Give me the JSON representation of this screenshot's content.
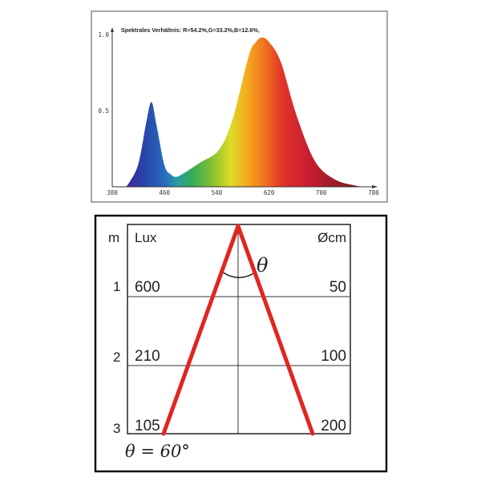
{
  "chart_data": {
    "type": "area",
    "title": "Spektrales Verhältnis:  R=54.2%,G=33.2%,B=12.6%,",
    "xlabel": "",
    "ylabel": "",
    "xlim": [
      380,
      780
    ],
    "ylim": [
      0,
      1.0
    ],
    "x_ticks": [
      "380",
      "460",
      "540",
      "620",
      "700",
      "780"
    ],
    "y_ticks": [
      "0.5",
      "1.0"
    ],
    "grid": false,
    "fill": "wavelength-spectrum-colors",
    "series": [
      {
        "x": [
          400,
          405,
          420,
          432,
          440,
          448,
          460,
          470,
          478,
          490,
          515,
          543,
          564,
          589,
          600,
          609,
          620,
          638,
          662,
          690,
          720,
          752,
          770
        ],
        "values": [
          0,
          0.02,
          0.15,
          0.42,
          0.556,
          0.4,
          0.14,
          0.08,
          0.065,
          0.09,
          0.16,
          0.24,
          0.44,
          0.86,
          0.95,
          0.98,
          0.95,
          0.82,
          0.47,
          0.17,
          0.05,
          0.008,
          0
        ]
      }
    ]
  },
  "diagram": {
    "beam_angle_symbol": "θ",
    "beam_angle_label": "θ = 60°",
    "beam_color": "#e0261f",
    "headers": {
      "distance": "m",
      "lux": "Lux",
      "diameter": "Øcm"
    },
    "rows": [
      {
        "distance": "1",
        "lux": "600",
        "diameter": "50"
      },
      {
        "distance": "2",
        "lux": "210",
        "diameter": "100"
      },
      {
        "distance": "3",
        "lux": "105",
        "diameter": "200"
      }
    ]
  }
}
